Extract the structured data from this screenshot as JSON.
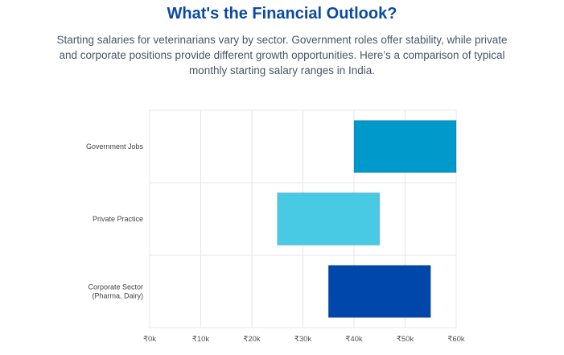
{
  "header": {
    "title": "What's the Financial Outlook?",
    "subtitle": "Starting salaries for veterinarians vary by sector. Government roles offer stability, while private and corporate positions provide different growth opportunities. Here’s a comparison of typical monthly starting salary ranges in India."
  },
  "chart_data": {
    "type": "bar",
    "orientation": "horizontal",
    "value_type": "range",
    "categories": [
      [
        "Government Jobs"
      ],
      [
        "Private Practice"
      ],
      [
        "Corporate Sector",
        "(Pharma, Dairy)"
      ]
    ],
    "ranges": [
      [
        40000,
        60000
      ],
      [
        25000,
        45000
      ],
      [
        35000,
        55000
      ]
    ],
    "colors": [
      "#0099cc",
      "#48cae4",
      "#0047ab"
    ],
    "xlim": [
      0,
      60000
    ],
    "xticks": [
      0,
      10000,
      20000,
      30000,
      40000,
      50000,
      60000
    ],
    "xtick_labels": [
      "₹0k",
      "₹10k",
      "₹20k",
      "₹30k",
      "₹40k",
      "₹50k",
      "₹60k"
    ],
    "grid": true,
    "legend": "none"
  }
}
